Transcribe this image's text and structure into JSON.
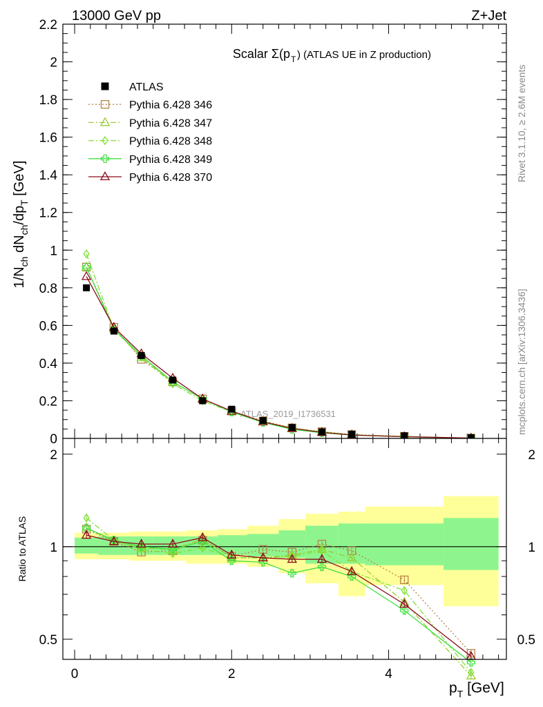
{
  "header": {
    "energy_label": "13000 GeV pp",
    "process_label": "Z+Jet",
    "plot_title": "Scalar Σ(p",
    "plot_title_sub": "T",
    "plot_title_tail": ") (ATLAS UE in Z production)",
    "side_label_top": "Rivet 3.1.10, ≥ 2.6M events",
    "side_label_bottom": "mcplots.cern.ch [arXiv:1306.3436]",
    "watermark": "ATLAS_2019_I1736531"
  },
  "axes": {
    "main_ylabel": "1/N_ch dN_ch/dp_T [GeV]",
    "ratio_ylabel": "Ratio to ATLAS",
    "xlabel": "p_T [GeV]",
    "main_yticks": [
      "0",
      "0.2",
      "0.4",
      "0.6",
      "0.8",
      "1",
      "1.2",
      "1.4",
      "1.6",
      "1.8",
      "2",
      "2.2"
    ],
    "ratio_yticks": [
      "0.5",
      "1",
      "2"
    ],
    "xticks": [
      "0",
      "2",
      "4"
    ]
  },
  "legend": {
    "entries": [
      {
        "label": "ATLAS",
        "color": "#000000",
        "marker": "square-filled",
        "line": "none"
      },
      {
        "label": "Pythia 6.428 346",
        "color": "#b5834a",
        "marker": "square-open",
        "line": "dotted"
      },
      {
        "label": "Pythia 6.428 347",
        "color": "#9acd32",
        "marker": "triangle-open",
        "line": "dashdot"
      },
      {
        "label": "Pythia 6.428 348",
        "color": "#7fe033",
        "marker": "diamond-open",
        "line": "dashdot"
      },
      {
        "label": "Pythia 6.428 349",
        "color": "#3ee03e",
        "marker": "cross-open",
        "line": "solid"
      },
      {
        "label": "Pythia 6.428 370",
        "color": "#8b0a1a",
        "marker": "triangle-open",
        "line": "solid"
      }
    ]
  },
  "chart_data": {
    "type": "line",
    "title": "Scalar Σ(pT) (ATLAS UE in Z production)",
    "xlabel": "p_T [GeV]",
    "ylabel": "1/N_ch dN_ch/dp_T [GeV]",
    "xlim": [
      -0.15,
      5.5
    ],
    "ylim": [
      0,
      2.2
    ],
    "ratio_ylim": [
      0.43,
      2.25
    ],
    "x": [
      0.15,
      0.5,
      0.85,
      1.25,
      1.63,
      2.0,
      2.4,
      2.77,
      3.15,
      3.53,
      4.2,
      5.05
    ],
    "x_edges": [
      0.0,
      0.3,
      0.7,
      1.0,
      1.42,
      1.82,
      2.2,
      2.6,
      2.94,
      3.36,
      3.7,
      4.7,
      5.4
    ],
    "data": {
      "name": "ATLAS",
      "values": [
        0.8,
        0.57,
        0.44,
        0.31,
        0.2,
        0.155,
        0.095,
        0.058,
        0.035,
        0.022,
        0.014,
        0.004
      ]
    },
    "series": [
      {
        "name": "Pythia 6.428 346",
        "values": [
          0.91,
          0.59,
          0.42,
          0.3,
          0.21,
          0.145,
          0.093,
          0.056,
          0.036,
          0.021,
          0.011,
          0.0018
        ],
        "ratio": [
          1.14,
          1.04,
          0.96,
          0.97,
          1.05,
          0.93,
          0.98,
          0.96,
          1.02,
          0.97,
          0.78,
          0.45
        ]
      },
      {
        "name": "Pythia 6.428 347",
        "values": [
          0.91,
          0.58,
          0.43,
          0.3,
          0.21,
          0.143,
          0.089,
          0.055,
          0.034,
          0.02,
          0.0092,
          0.0015
        ],
        "ratio": [
          1.15,
          1.04,
          0.99,
          0.98,
          1.06,
          0.92,
          0.92,
          0.94,
          0.98,
          0.92,
          0.66,
          0.38
        ]
      },
      {
        "name": "Pythia 6.428 348",
        "values": [
          0.98,
          0.58,
          0.43,
          0.29,
          0.2,
          0.141,
          0.088,
          0.054,
          0.035,
          0.019,
          0.01,
          0.0015
        ],
        "ratio": [
          1.24,
          1.05,
          0.98,
          0.95,
          0.99,
          0.92,
          0.92,
          0.93,
          0.97,
          0.83,
          0.72,
          0.39
        ]
      },
      {
        "name": "Pythia 6.428 349",
        "values": [
          0.91,
          0.58,
          0.44,
          0.3,
          0.21,
          0.14,
          0.085,
          0.048,
          0.03,
          0.018,
          0.0087,
          0.0014
        ],
        "ratio": [
          1.15,
          1.05,
          1.0,
          0.98,
          1.04,
          0.9,
          0.89,
          0.82,
          0.86,
          0.8,
          0.62,
          0.42
        ]
      },
      {
        "name": "Pythia 6.428 370",
        "values": [
          0.86,
          0.59,
          0.45,
          0.32,
          0.21,
          0.145,
          0.088,
          0.053,
          0.032,
          0.018,
          0.0092,
          0.0017
        ],
        "ratio": [
          1.09,
          1.04,
          1.02,
          1.02,
          1.07,
          0.94,
          0.92,
          0.91,
          0.91,
          0.83,
          0.65,
          0.44
        ]
      }
    ],
    "ratio_band_stat": [
      [
        0.95,
        1.07
      ],
      [
        0.94,
        1.08
      ],
      [
        0.94,
        1.08
      ],
      [
        0.94,
        1.08
      ],
      [
        0.94,
        1.08
      ],
      [
        0.94,
        1.09
      ],
      [
        0.93,
        1.1
      ],
      [
        0.92,
        1.13
      ],
      [
        0.88,
        1.17
      ],
      [
        0.88,
        1.19
      ],
      [
        0.87,
        1.19
      ],
      [
        0.84,
        1.24
      ]
    ],
    "ratio_band_syst": [
      [
        0.91,
        1.11
      ],
      [
        0.91,
        1.11
      ],
      [
        0.9,
        1.12
      ],
      [
        0.9,
        1.12
      ],
      [
        0.88,
        1.13
      ],
      [
        0.88,
        1.14
      ],
      [
        0.86,
        1.17
      ],
      [
        0.82,
        1.23
      ],
      [
        0.76,
        1.28
      ],
      [
        0.69,
        1.3
      ],
      [
        0.75,
        1.35
      ],
      [
        0.64,
        1.46
      ]
    ]
  }
}
